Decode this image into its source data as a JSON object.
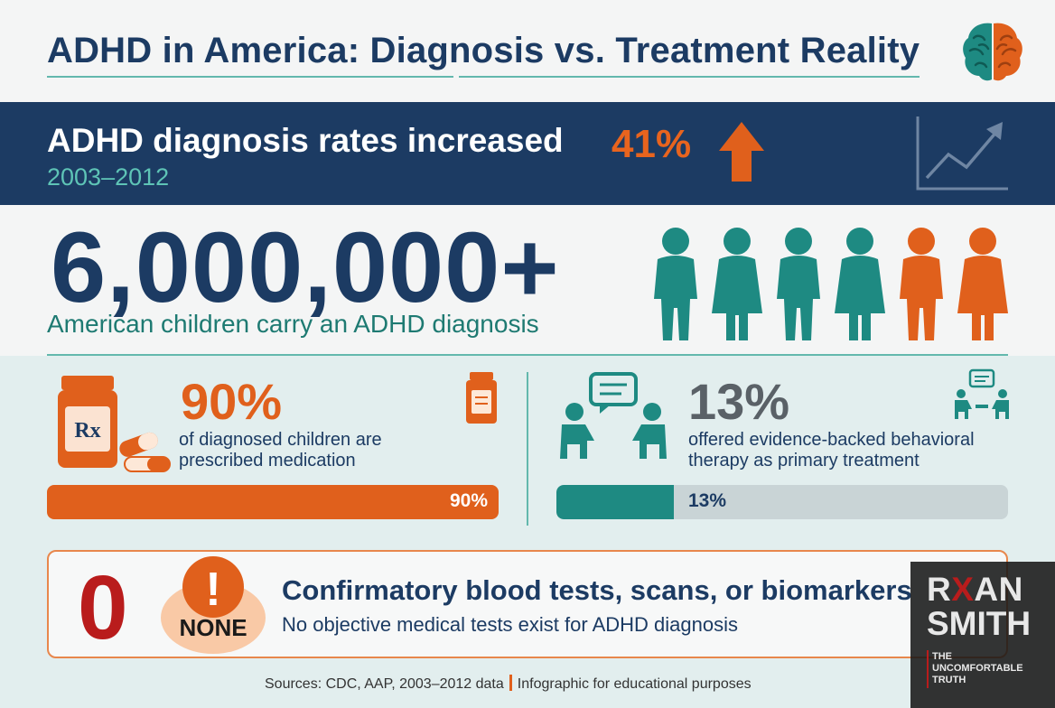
{
  "header": {
    "title": "ADHD in America: Diagnosis vs. Treatment Reality"
  },
  "banner": {
    "text": "ADHD diagnosis rates increased",
    "percent": "41%",
    "years": "2003–2012"
  },
  "stat_children": {
    "number": "6,000,000+",
    "caption": "American children carry an ADHD diagnosis"
  },
  "medication": {
    "percent": "90%",
    "text": "of diagnosed children are prescribed medication",
    "bar_label": "90%",
    "bar_value": 0.9,
    "rx_label": "Rx"
  },
  "therapy": {
    "percent": "13%",
    "text": "offered evidence-backed behavioral therapy as primary treatment",
    "bar_label": "13%",
    "bar_value": 0.13
  },
  "callout": {
    "zero": "0",
    "none_label": "NONE",
    "exclamation": "!",
    "headline": "Confirmatory blood tests, scans, or biomarkers",
    "subtext": "No objective medical tests exist for ADHD diagnosis"
  },
  "sources": {
    "left": "Sources: CDC, AAP, 2003–2012 data",
    "right": "Infographic for educational purposes"
  },
  "colors": {
    "navy": "#1c3b63",
    "orange": "#e0601c",
    "teal": "#1e8a82",
    "red": "#b91c1c"
  }
}
